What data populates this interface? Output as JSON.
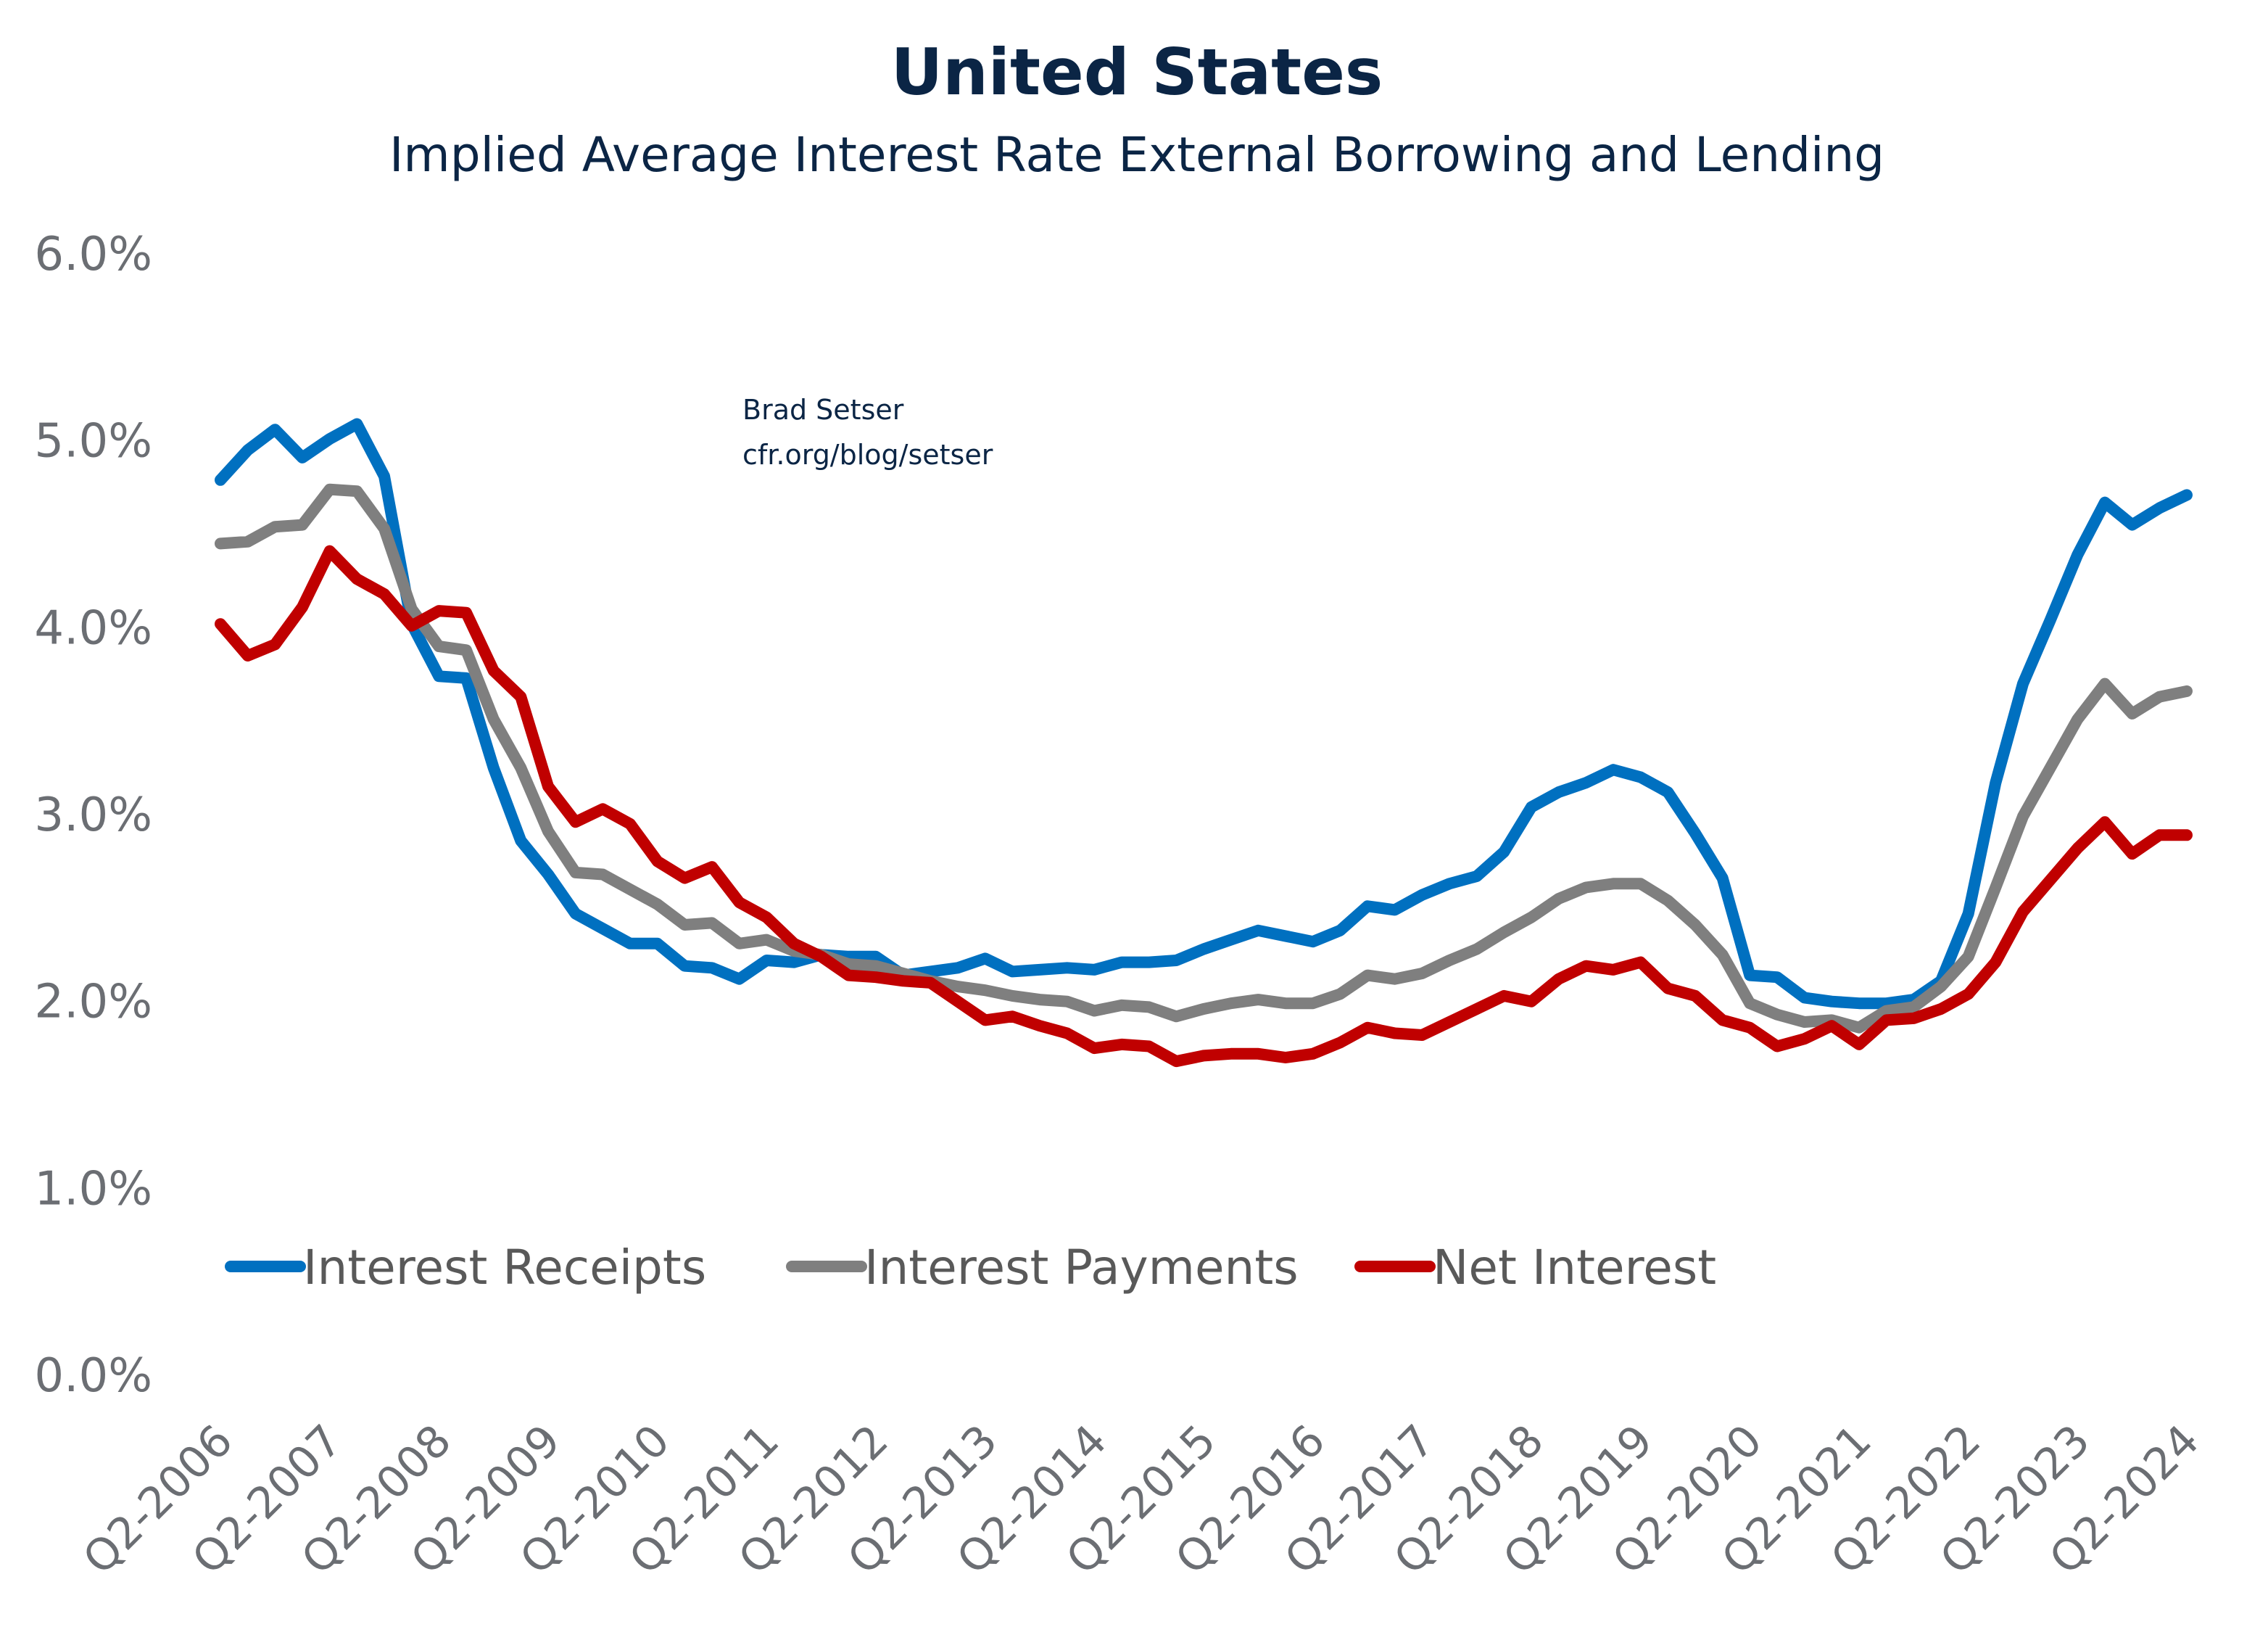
{
  "chart_data": {
    "type": "line",
    "title": "United States",
    "subtitle": "Implied Average Interest Rate External Borrowing and Lending",
    "annotation": [
      "Brad Setser",
      "cfr.org/blog/setser"
    ],
    "xlabel": "",
    "ylabel": "",
    "ylim": [
      0,
      6
    ],
    "y_ticks": [
      "0.0%",
      "1.0%",
      "2.0%",
      "3.0%",
      "4.0%",
      "5.0%",
      "6.0%"
    ],
    "x_tick_labels": [
      "Q2-2006",
      "Q2-2007",
      "Q2-2008",
      "Q2-2009",
      "Q2-2010",
      "Q2-2011",
      "Q2-2012",
      "Q2-2013",
      "Q2-2014",
      "Q2-2015",
      "Q2-2016",
      "Q2-2017",
      "Q2-2018",
      "Q2-2019",
      "Q2-2020",
      "Q2-2021",
      "Q2-2022",
      "Q2-2023",
      "Q2-2024"
    ],
    "x_range": [
      "Q2-2006",
      "Q2-2024"
    ],
    "frequency": "quarterly",
    "grid": false,
    "legend_position": "bottom-left inside plot",
    "series": [
      {
        "name": "Interest Receipts",
        "color": "#0070C0",
        "values": [
          4.79,
          4.95,
          5.06,
          4.91,
          5.01,
          5.09,
          4.81,
          4.02,
          3.74,
          3.73,
          3.25,
          2.86,
          2.68,
          2.47,
          2.39,
          2.31,
          2.31,
          2.19,
          2.18,
          2.12,
          2.22,
          2.21,
          2.25,
          2.24,
          2.24,
          2.14,
          2.16,
          2.18,
          2.23,
          2.16,
          2.17,
          2.18,
          2.17,
          2.21,
          2.21,
          2.22,
          2.28,
          2.33,
          2.38,
          2.35,
          2.32,
          2.38,
          2.51,
          2.49,
          2.57,
          2.63,
          2.67,
          2.8,
          3.04,
          3.12,
          3.17,
          3.24,
          3.2,
          3.12,
          2.9,
          2.66,
          2.14,
          2.13,
          2.02,
          2.0,
          1.99,
          1.99,
          2.01,
          2.11,
          2.47,
          3.17,
          3.7,
          4.04,
          4.39,
          4.67,
          4.55,
          4.64,
          4.71
        ]
      },
      {
        "name": "Interest Payments",
        "color": "#7F7F7F",
        "values": [
          4.45,
          4.46,
          4.54,
          4.55,
          4.74,
          4.73,
          4.53,
          4.1,
          3.9,
          3.88,
          3.51,
          3.25,
          2.91,
          2.69,
          2.68,
          2.6,
          2.52,
          2.41,
          2.42,
          2.31,
          2.33,
          2.27,
          2.25,
          2.2,
          2.19,
          2.15,
          2.11,
          2.08,
          2.06,
          2.03,
          2.01,
          2.0,
          1.95,
          1.98,
          1.97,
          1.92,
          1.96,
          1.99,
          2.01,
          1.99,
          1.99,
          2.04,
          2.14,
          2.12,
          2.15,
          2.22,
          2.28,
          2.37,
          2.45,
          2.55,
          2.61,
          2.63,
          2.63,
          2.54,
          2.41,
          2.25,
          1.99,
          1.93,
          1.89,
          1.9,
          1.86,
          1.95,
          1.97,
          2.08,
          2.24,
          2.61,
          2.99,
          3.25,
          3.51,
          3.7,
          3.54,
          3.63,
          3.66
        ]
      },
      {
        "name": "Net Interest",
        "color": "#C00000",
        "values": [
          4.02,
          3.85,
          3.91,
          4.11,
          4.41,
          4.26,
          4.18,
          4.01,
          4.09,
          4.08,
          3.77,
          3.63,
          3.15,
          2.96,
          3.03,
          2.95,
          2.75,
          2.66,
          2.72,
          2.53,
          2.45,
          2.31,
          2.24,
          2.14,
          2.13,
          2.11,
          2.1,
          2.0,
          1.9,
          1.92,
          1.87,
          1.83,
          1.75,
          1.77,
          1.76,
          1.68,
          1.71,
          1.72,
          1.72,
          1.7,
          1.72,
          1.78,
          1.86,
          1.83,
          1.82,
          1.89,
          1.96,
          2.03,
          2.0,
          2.12,
          2.19,
          2.17,
          2.21,
          2.07,
          2.03,
          1.9,
          1.86,
          1.76,
          1.8,
          1.87,
          1.77,
          1.9,
          1.91,
          1.96,
          2.04,
          2.21,
          2.48,
          2.65,
          2.82,
          2.96,
          2.79,
          2.89,
          2.89
        ]
      }
    ]
  }
}
